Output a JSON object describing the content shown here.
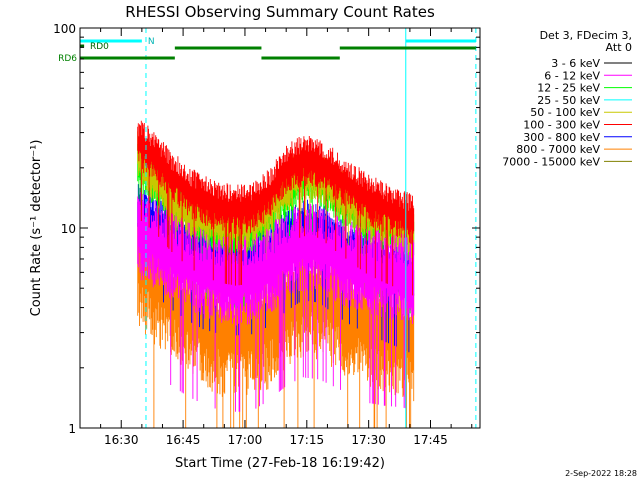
{
  "chart_data": {
    "type": "line",
    "title": "RHESSI Observing Summary Count Rates",
    "xlabel": "Start Time (27-Feb-18 16:19:42)",
    "ylabel": "Count Rate (s⁻¹ detector⁻¹)",
    "yscale": "log",
    "ylim": [
      1,
      100
    ],
    "xlim": [
      "16:20",
      "17:57"
    ],
    "x_ticks": [
      "16:30",
      "16:45",
      "17:00",
      "17:15",
      "17:30",
      "17:45"
    ],
    "y_ticks": [
      "1",
      "10",
      "100"
    ],
    "legend_header": [
      "Det 3, FDecim 3,",
      "Att 0"
    ],
    "legend_position": "top-right",
    "series": [
      {
        "name": "3 - 6 keV",
        "color": "#000000",
        "values": []
      },
      {
        "name": "6 - 12 keV",
        "color": "#ff00ff",
        "x": [
          "16:34",
          "16:38",
          "16:42",
          "16:46",
          "16:50",
          "16:54",
          "16:58",
          "17:02",
          "17:06",
          "17:10",
          "17:14",
          "17:18",
          "17:22",
          "17:26",
          "17:30",
          "17:34",
          "17:38",
          "17:41"
        ],
        "values": [
          9.5,
          8.5,
          7.5,
          6.6,
          6.0,
          5.6,
          5.5,
          5.6,
          6.3,
          7.4,
          8.2,
          8.0,
          7.3,
          6.6,
          6.1,
          5.9,
          5.8,
          5.6
        ]
      },
      {
        "name": "12 - 25 keV",
        "color": "#00ff00",
        "x": [
          "16:34",
          "16:38",
          "16:42",
          "16:46",
          "16:50",
          "16:54",
          "16:58",
          "17:02",
          "17:06",
          "17:10",
          "17:14",
          "17:18",
          "17:22",
          "17:26",
          "17:30",
          "17:34",
          "17:38",
          "17:41"
        ],
        "values": [
          21,
          17.5,
          14.5,
          12.2,
          10.8,
          10.0,
          9.6,
          10.0,
          12.0,
          15.5,
          18.0,
          17.5,
          15.0,
          13.0,
          11.5,
          10.5,
          9.5,
          8.8
        ]
      },
      {
        "name": "25 - 50 keV",
        "color": "#00ffff",
        "values": []
      },
      {
        "name": "50 - 100 keV",
        "color": "#c8c800",
        "x": [
          "16:34",
          "16:38",
          "16:42",
          "16:46",
          "16:50",
          "16:54",
          "16:58",
          "17:02",
          "17:06",
          "17:10",
          "17:14",
          "17:18",
          "17:22",
          "17:26",
          "17:30",
          "17:34",
          "17:38",
          "17:41"
        ],
        "values": [
          23,
          18,
          14,
          12,
          11,
          10.5,
          10.2,
          10.6,
          12.6,
          16,
          19,
          18.5,
          15.5,
          13.5,
          12,
          11,
          10,
          9.3
        ]
      },
      {
        "name": "100 - 300 keV",
        "color": "#ff0000",
        "x": [
          "16:34",
          "16:38",
          "16:42",
          "16:46",
          "16:50",
          "16:54",
          "16:58",
          "17:02",
          "17:06",
          "17:10",
          "17:14",
          "17:18",
          "17:22",
          "17:26",
          "17:30",
          "17:34",
          "17:38",
          "17:41"
        ],
        "values": [
          27,
          23,
          18.5,
          15.5,
          13.8,
          12.8,
          12.4,
          12.8,
          15,
          19.5,
          22,
          21.5,
          18.5,
          16,
          14,
          12.8,
          11.8,
          11
        ]
      },
      {
        "name": "300 - 800 keV",
        "color": "#0000ff",
        "x": [
          "16:34",
          "16:38",
          "16:42",
          "16:46",
          "16:50",
          "16:54",
          "16:58",
          "17:02",
          "17:06",
          "17:10",
          "17:14",
          "17:18",
          "17:22",
          "17:26",
          "17:30",
          "17:34",
          "17:38",
          "17:41"
        ],
        "values": [
          12.5,
          11.2,
          9.5,
          8.3,
          7.5,
          7.1,
          7.0,
          7.1,
          7.8,
          9.2,
          10.5,
          10.2,
          8.8,
          7.8,
          7.1,
          6.5,
          6.0,
          5.6
        ]
      },
      {
        "name": "800 - 7000 keV",
        "color": "#ff8000",
        "x": [
          "16:34",
          "16:38",
          "16:42",
          "16:46",
          "16:50",
          "16:54",
          "16:58",
          "17:02",
          "17:06",
          "17:10",
          "17:14",
          "17:18",
          "17:22",
          "17:26",
          "17:30",
          "17:34",
          "17:38",
          "17:41"
        ],
        "values": [
          6.8,
          5.6,
          4.6,
          3.8,
          3.4,
          3.1,
          3.0,
          3.1,
          3.4,
          4.2,
          4.8,
          4.7,
          4.1,
          3.7,
          3.4,
          3.2,
          3.0,
          2.9
        ]
      },
      {
        "name": "7000 - 15000 keV",
        "color": "#808000",
        "values": []
      }
    ],
    "flags": [
      {
        "label": "RD0",
        "color": "#006400",
        "segments": [
          [
            "16:20",
            "16:21"
          ]
        ]
      },
      {
        "label": "RD6",
        "color": "#008000",
        "segments": [
          [
            "16:20",
            "16:43"
          ],
          [
            "17:04",
            "17:23"
          ]
        ]
      },
      {
        "label": "",
        "color": "#008000",
        "segments": [
          [
            "16:43",
            "17:04"
          ],
          [
            "17:23",
            "17:56"
          ]
        ]
      },
      {
        "label": "N",
        "color": "#00ffff",
        "segments": [
          [
            "16:20",
            "16:35"
          ],
          [
            "17:39",
            "17:56"
          ]
        ]
      }
    ],
    "cyan_solid_lines": [
      "16:20",
      "17:39"
    ],
    "cyan_dashed_lines": [
      "16:36",
      "17:56"
    ],
    "timestamp": "2-Sep-2022 18:28"
  }
}
